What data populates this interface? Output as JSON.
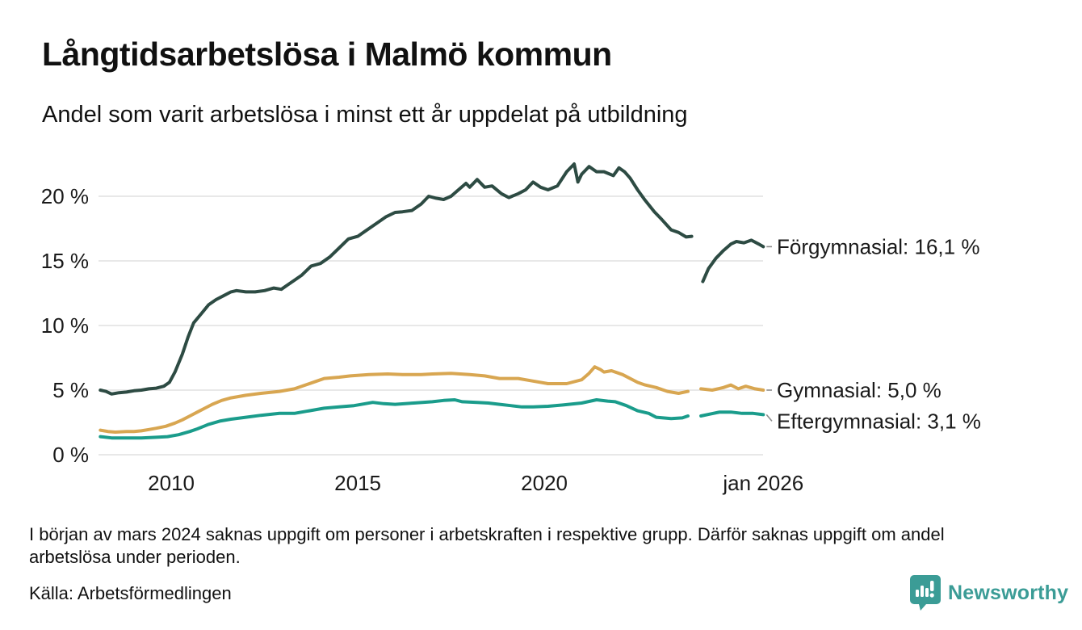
{
  "header": {
    "title": "Långtidsarbetslösa i Malmö kommun",
    "subtitle": "Andel som varit arbetslösa i minst ett år uppdelat på utbildning"
  },
  "footer": {
    "note": "I början av mars 2024 saknas uppgift om personer i arbetskraften i respektive grupp. Därför saknas uppgift om andel arbetslösa under perioden.",
    "source": "Källa: Arbetsförmedlingen",
    "brand": "Newsworthy",
    "brand_color": "#3b9c96"
  },
  "chart_data": {
    "type": "line",
    "title": "Långtidsarbetslösa i Malmö kommun",
    "subtitle": "Andel som varit arbetslösa i minst ett år uppdelat på utbildning",
    "xlabel": "",
    "ylabel": "",
    "x_unit": "year (decimal)",
    "y_unit": "percent",
    "xlim": [
      2008.05,
      2025.87
    ],
    "ylim": [
      0,
      22.8
    ],
    "grid": "horizontal",
    "grid_color": "#e8e8e8",
    "legend_position": "right-end-labels",
    "xticks": [
      {
        "x": 2010,
        "label": "2010"
      },
      {
        "x": 2015,
        "label": "2015"
      },
      {
        "x": 2020,
        "label": "2020"
      },
      {
        "x": 2025.87,
        "label": "jan 2026"
      }
    ],
    "yticks": [
      {
        "y": 0,
        "label": "0 %"
      },
      {
        "y": 5,
        "label": "5 %"
      },
      {
        "y": 10,
        "label": "10 %"
      },
      {
        "y": 15,
        "label": "15 %"
      },
      {
        "y": 20,
        "label": "20 %"
      }
    ],
    "series": [
      {
        "id": "forgymnasial",
        "name": "Förgymnasial",
        "color": "#2d4b43",
        "end_label": "Förgymnasial: 16,1 %",
        "last_value": 16.1,
        "segments": [
          [
            [
              2008.1,
              5.0
            ],
            [
              2008.25,
              4.9
            ],
            [
              2008.4,
              4.7
            ],
            [
              2008.6,
              4.8
            ],
            [
              2008.8,
              4.85
            ],
            [
              2009.0,
              4.95
            ],
            [
              2009.2,
              5.0
            ],
            [
              2009.4,
              5.1
            ],
            [
              2009.6,
              5.15
            ],
            [
              2009.8,
              5.3
            ],
            [
              2009.95,
              5.6
            ],
            [
              2010.1,
              6.4
            ],
            [
              2010.3,
              7.8
            ],
            [
              2010.45,
              9.1
            ],
            [
              2010.6,
              10.2
            ],
            [
              2010.8,
              10.9
            ],
            [
              2011.0,
              11.6
            ],
            [
              2011.2,
              12.0
            ],
            [
              2011.4,
              12.3
            ],
            [
              2011.6,
              12.6
            ],
            [
              2011.75,
              12.7
            ],
            [
              2012.0,
              12.6
            ],
            [
              2012.25,
              12.6
            ],
            [
              2012.5,
              12.7
            ],
            [
              2012.75,
              12.9
            ],
            [
              2012.95,
              12.8
            ],
            [
              2013.1,
              13.1
            ],
            [
              2013.3,
              13.5
            ],
            [
              2013.5,
              13.9
            ],
            [
              2013.75,
              14.6
            ],
            [
              2014.0,
              14.8
            ],
            [
              2014.25,
              15.3
            ],
            [
              2014.5,
              16.0
            ],
            [
              2014.75,
              16.7
            ],
            [
              2015.0,
              16.9
            ],
            [
              2015.2,
              17.3
            ],
            [
              2015.5,
              17.9
            ],
            [
              2015.75,
              18.4
            ],
            [
              2016.0,
              18.75
            ],
            [
              2016.2,
              18.8
            ],
            [
              2016.45,
              18.9
            ],
            [
              2016.7,
              19.4
            ],
            [
              2016.9,
              20.0
            ],
            [
              2017.1,
              19.85
            ],
            [
              2017.3,
              19.75
            ],
            [
              2017.5,
              20.0
            ],
            [
              2017.7,
              20.5
            ],
            [
              2017.9,
              21.0
            ],
            [
              2018.0,
              20.7
            ],
            [
              2018.2,
              21.3
            ],
            [
              2018.4,
              20.7
            ],
            [
              2018.6,
              20.8
            ],
            [
              2018.85,
              20.2
            ],
            [
              2019.05,
              19.9
            ],
            [
              2019.3,
              20.2
            ],
            [
              2019.5,
              20.5
            ],
            [
              2019.7,
              21.1
            ],
            [
              2019.9,
              20.7
            ],
            [
              2020.1,
              20.5
            ],
            [
              2020.35,
              20.8
            ],
            [
              2020.6,
              21.9
            ],
            [
              2020.8,
              22.5
            ],
            [
              2020.9,
              21.1
            ],
            [
              2021.0,
              21.7
            ],
            [
              2021.2,
              22.3
            ],
            [
              2021.4,
              21.9
            ],
            [
              2021.6,
              21.9
            ],
            [
              2021.85,
              21.6
            ],
            [
              2022.0,
              22.2
            ],
            [
              2022.15,
              21.9
            ],
            [
              2022.3,
              21.4
            ],
            [
              2022.5,
              20.5
            ],
            [
              2022.7,
              19.7
            ],
            [
              2022.95,
              18.8
            ],
            [
              2023.15,
              18.2
            ],
            [
              2023.4,
              17.4
            ],
            [
              2023.6,
              17.2
            ],
            [
              2023.8,
              16.85
            ],
            [
              2023.95,
              16.9
            ]
          ],
          [
            [
              2024.25,
              13.4
            ],
            [
              2024.4,
              14.4
            ],
            [
              2024.6,
              15.2
            ],
            [
              2024.8,
              15.8
            ],
            [
              2025.0,
              16.3
            ],
            [
              2025.15,
              16.5
            ],
            [
              2025.35,
              16.4
            ],
            [
              2025.55,
              16.6
            ],
            [
              2025.75,
              16.3
            ],
            [
              2025.87,
              16.1
            ]
          ]
        ]
      },
      {
        "id": "gymnasial",
        "name": "Gymnasial",
        "color": "#d8a651",
        "end_label": "Gymnasial:  5,0 %",
        "last_value": 5.0,
        "segments": [
          [
            [
              2008.1,
              1.9
            ],
            [
              2008.3,
              1.8
            ],
            [
              2008.5,
              1.75
            ],
            [
              2008.8,
              1.8
            ],
            [
              2009.0,
              1.8
            ],
            [
              2009.2,
              1.85
            ],
            [
              2009.4,
              1.95
            ],
            [
              2009.6,
              2.05
            ],
            [
              2009.85,
              2.2
            ],
            [
              2010.1,
              2.45
            ],
            [
              2010.3,
              2.7
            ],
            [
              2010.5,
              3.0
            ],
            [
              2010.7,
              3.3
            ],
            [
              2010.9,
              3.6
            ],
            [
              2011.1,
              3.9
            ],
            [
              2011.35,
              4.2
            ],
            [
              2011.6,
              4.4
            ],
            [
              2011.8,
              4.5
            ],
            [
              2012.0,
              4.6
            ],
            [
              2012.4,
              4.75
            ],
            [
              2012.9,
              4.9
            ],
            [
              2013.3,
              5.1
            ],
            [
              2013.6,
              5.4
            ],
            [
              2013.9,
              5.7
            ],
            [
              2014.1,
              5.9
            ],
            [
              2014.5,
              6.0
            ],
            [
              2014.8,
              6.1
            ],
            [
              2015.3,
              6.2
            ],
            [
              2015.8,
              6.25
            ],
            [
              2016.2,
              6.2
            ],
            [
              2016.7,
              6.2
            ],
            [
              2017.0,
              6.25
            ],
            [
              2017.5,
              6.3
            ],
            [
              2018.0,
              6.2
            ],
            [
              2018.4,
              6.1
            ],
            [
              2018.8,
              5.9
            ],
            [
              2019.3,
              5.9
            ],
            [
              2019.7,
              5.7
            ],
            [
              2020.1,
              5.5
            ],
            [
              2020.6,
              5.5
            ],
            [
              2021.0,
              5.8
            ],
            [
              2021.2,
              6.3
            ],
            [
              2021.35,
              6.8
            ],
            [
              2021.5,
              6.6
            ],
            [
              2021.6,
              6.4
            ],
            [
              2021.8,
              6.5
            ],
            [
              2022.1,
              6.2
            ],
            [
              2022.5,
              5.6
            ],
            [
              2022.7,
              5.4
            ],
            [
              2023.0,
              5.2
            ],
            [
              2023.3,
              4.9
            ],
            [
              2023.6,
              4.75
            ],
            [
              2023.85,
              4.9
            ]
          ],
          [
            [
              2024.2,
              5.1
            ],
            [
              2024.5,
              5.0
            ],
            [
              2024.8,
              5.2
            ],
            [
              2025.0,
              5.4
            ],
            [
              2025.2,
              5.1
            ],
            [
              2025.4,
              5.3
            ],
            [
              2025.65,
              5.1
            ],
            [
              2025.87,
              5.0
            ]
          ]
        ]
      },
      {
        "id": "eftergymnasial",
        "name": "Eftergymnasial",
        "color": "#1a9c8b",
        "end_label": "Eftergymnasial:  3,1 %",
        "last_value": 3.1,
        "segments": [
          [
            [
              2008.1,
              1.4
            ],
            [
              2008.4,
              1.3
            ],
            [
              2008.8,
              1.3
            ],
            [
              2009.2,
              1.3
            ],
            [
              2009.6,
              1.35
            ],
            [
              2009.9,
              1.4
            ],
            [
              2010.2,
              1.55
            ],
            [
              2010.5,
              1.8
            ],
            [
              2010.7,
              2.0
            ],
            [
              2011.0,
              2.35
            ],
            [
              2011.3,
              2.6
            ],
            [
              2011.6,
              2.75
            ],
            [
              2012.0,
              2.9
            ],
            [
              2012.4,
              3.05
            ],
            [
              2012.9,
              3.2
            ],
            [
              2013.3,
              3.2
            ],
            [
              2013.7,
              3.4
            ],
            [
              2014.1,
              3.6
            ],
            [
              2014.5,
              3.7
            ],
            [
              2014.9,
              3.8
            ],
            [
              2015.2,
              3.95
            ],
            [
              2015.4,
              4.05
            ],
            [
              2015.7,
              3.95
            ],
            [
              2016.0,
              3.9
            ],
            [
              2016.5,
              4.0
            ],
            [
              2017.0,
              4.1
            ],
            [
              2017.3,
              4.2
            ],
            [
              2017.6,
              4.25
            ],
            [
              2017.8,
              4.1
            ],
            [
              2018.2,
              4.05
            ],
            [
              2018.5,
              4.0
            ],
            [
              2018.8,
              3.9
            ],
            [
              2019.1,
              3.8
            ],
            [
              2019.4,
              3.7
            ],
            [
              2019.7,
              3.7
            ],
            [
              2020.1,
              3.75
            ],
            [
              2020.5,
              3.85
            ],
            [
              2021.0,
              4.0
            ],
            [
              2021.4,
              4.25
            ],
            [
              2021.7,
              4.15
            ],
            [
              2021.9,
              4.1
            ],
            [
              2022.2,
              3.8
            ],
            [
              2022.5,
              3.4
            ],
            [
              2022.8,
              3.2
            ],
            [
              2023.0,
              2.9
            ],
            [
              2023.4,
              2.8
            ],
            [
              2023.7,
              2.85
            ],
            [
              2023.85,
              3.0
            ]
          ],
          [
            [
              2024.2,
              3.0
            ],
            [
              2024.45,
              3.15
            ],
            [
              2024.7,
              3.3
            ],
            [
              2025.0,
              3.3
            ],
            [
              2025.3,
              3.2
            ],
            [
              2025.6,
              3.2
            ],
            [
              2025.87,
              3.1
            ]
          ]
        ]
      }
    ]
  }
}
